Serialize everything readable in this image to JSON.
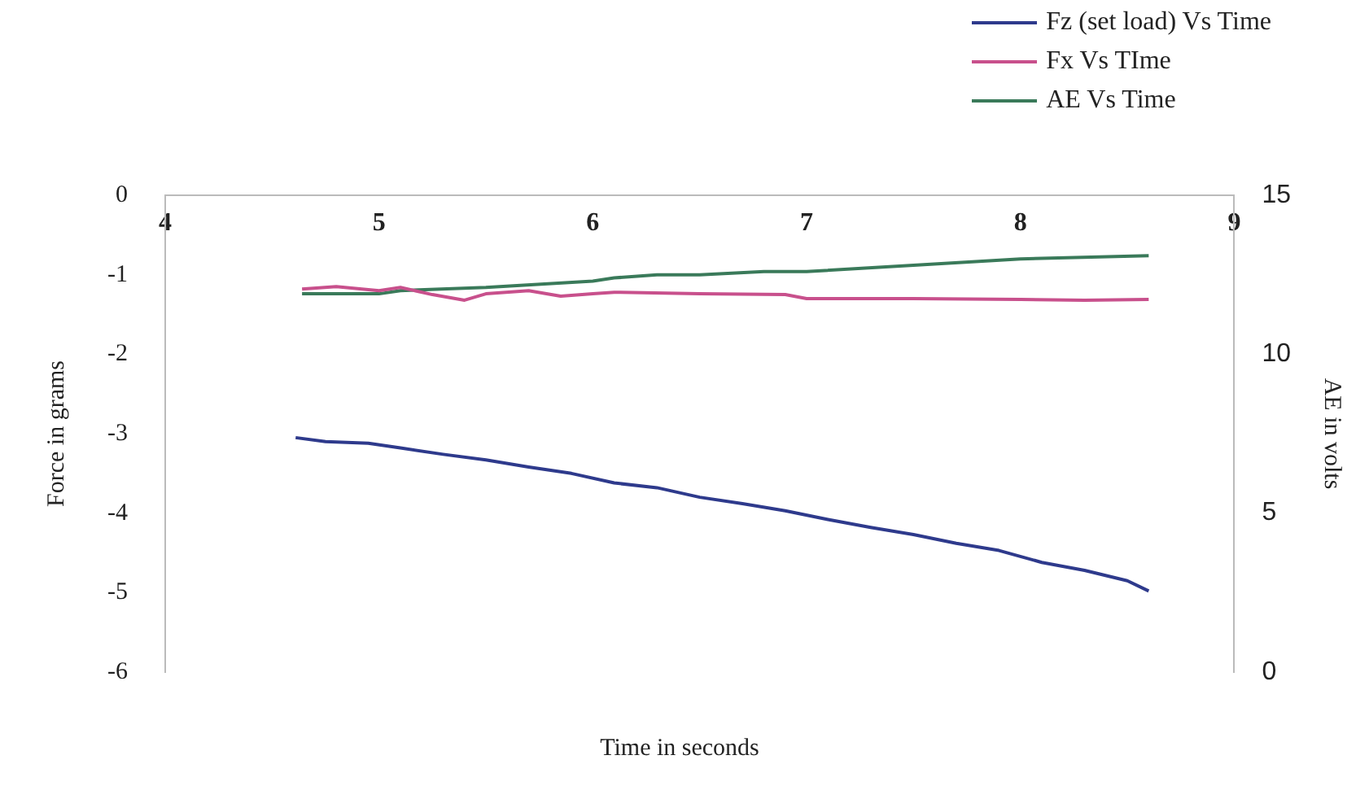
{
  "chart_data": {
    "type": "line",
    "xlabel": "Time in seconds",
    "ylabel": "Force in grams",
    "y2label": "AE in volts",
    "xlim": [
      4,
      9
    ],
    "xticks": [
      4,
      5,
      6,
      7,
      8,
      9
    ],
    "ylim": [
      -6,
      0
    ],
    "yticks": [
      -6,
      -5,
      -4,
      -3,
      -2,
      -1,
      0
    ],
    "y2lim": [
      0,
      15
    ],
    "y2ticks": [
      0,
      5,
      10,
      15
    ],
    "legend": "top right",
    "grid": false,
    "marker": "none",
    "line_style": "solid",
    "series": [
      {
        "name": "Fz (set load) Vs Time",
        "color": "#2e3a8c",
        "x": [
          4.61,
          4.75,
          4.95,
          5.1,
          5.3,
          5.5,
          5.7,
          5.9,
          6.1,
          6.3,
          6.5,
          6.7,
          6.9,
          7.1,
          7.3,
          7.5,
          7.7,
          7.9,
          8.1,
          8.3,
          8.5,
          8.6
        ],
        "values": [
          -3.05,
          -3.1,
          -3.12,
          -3.18,
          -3.26,
          -3.33,
          -3.42,
          -3.5,
          -3.62,
          -3.68,
          -3.8,
          -3.88,
          -3.97,
          -4.08,
          -4.18,
          -4.27,
          -4.38,
          -4.47,
          -4.62,
          -4.72,
          -4.85,
          -4.98
        ]
      },
      {
        "name": "Fx Vs TIme",
        "color": "#c8508c",
        "x": [
          4.64,
          4.8,
          5.0,
          5.1,
          5.25,
          5.4,
          5.5,
          5.7,
          5.85,
          6.0,
          6.1,
          6.5,
          6.9,
          7.0,
          7.5,
          8.0,
          8.3,
          8.6
        ],
        "values": [
          -1.18,
          -1.15,
          -1.2,
          -1.16,
          -1.25,
          -1.32,
          -1.24,
          -1.2,
          -1.27,
          -1.24,
          -1.22,
          -1.24,
          -1.25,
          -1.3,
          -1.3,
          -1.31,
          -1.32,
          -1.31
        ]
      },
      {
        "name": "AE Vs Time",
        "color": "#3a7a5a",
        "axis": "y2",
        "x": [
          4.64,
          5.0,
          5.1,
          5.5,
          6.0,
          6.1,
          6.3,
          6.5,
          6.8,
          7.0,
          7.5,
          8.0,
          8.6
        ],
        "values": [
          11.9,
          11.9,
          12.0,
          12.1,
          12.3,
          12.4,
          12.5,
          12.5,
          12.6,
          12.6,
          12.8,
          13.0,
          13.1
        ]
      }
    ]
  }
}
